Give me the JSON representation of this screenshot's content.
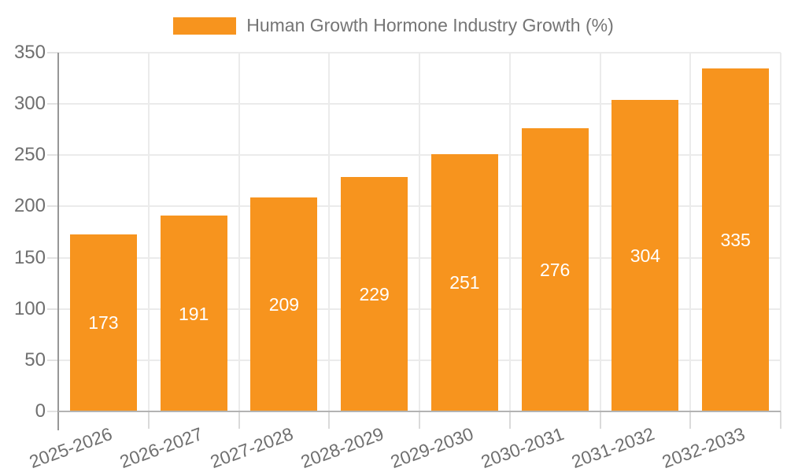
{
  "legend": {
    "label": "Human Growth Hormone Industry Growth (%)"
  },
  "chart_data": {
    "type": "bar",
    "title": "Human Growth Hormone Industry Growth (%)",
    "categories": [
      "2025-2026",
      "2026-2027",
      "2027-2028",
      "2028-2029",
      "2029-2030",
      "2030-2031",
      "2031-2032",
      "2032-2033"
    ],
    "values": [
      173,
      191,
      209,
      229,
      251,
      276,
      304,
      335
    ],
    "value_labels": [
      "173",
      "191",
      "209",
      "229",
      "251",
      "276",
      "304",
      "335"
    ],
    "xlabel": "",
    "ylabel": "",
    "ylim": [
      0,
      350
    ],
    "ytick_step": 50,
    "ytick_labels": [
      "0",
      "50",
      "100",
      "150",
      "200",
      "250",
      "300",
      "350"
    ],
    "grid": true,
    "legend_position": "top-center",
    "x_label_rotation_deg": -20,
    "colors": {
      "bar": "#F7941E",
      "value_label": "#FFFFFF",
      "axis_text": "#6F6F6F",
      "legend_text": "#757575",
      "gridline": "#EBEBEB",
      "y_axis_line": "#979797",
      "x_axis_line": "#B3B3B3"
    }
  }
}
